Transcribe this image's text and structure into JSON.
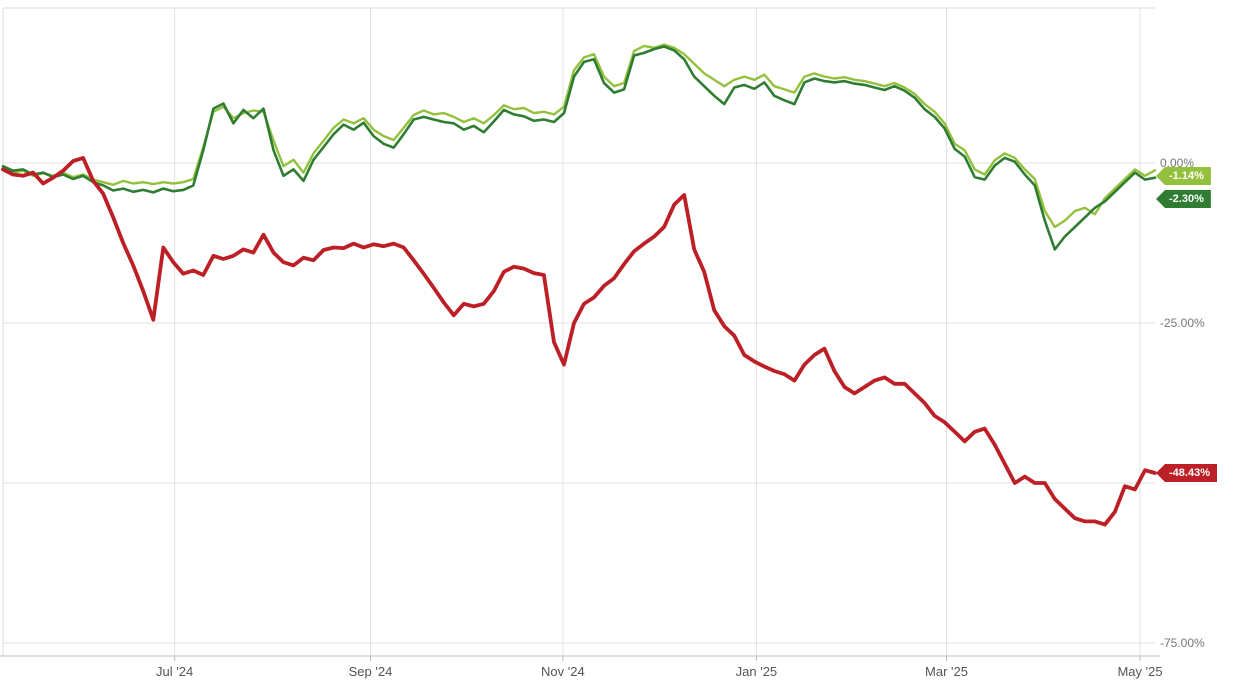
{
  "chart_data": {
    "type": "line",
    "title": "",
    "xlabel": "",
    "ylabel": "",
    "ylim": [
      -77,
      24.2
    ],
    "grid": true,
    "legend_position": "right-badges",
    "x_ticks": [
      {
        "label": "Jul '24",
        "t": 0.149
      },
      {
        "label": "Sep '24",
        "t": 0.319
      },
      {
        "label": "Nov '24",
        "t": 0.486
      },
      {
        "label": "Jan '25",
        "t": 0.654
      },
      {
        "label": "Mar '25",
        "t": 0.819
      },
      {
        "label": "May '25",
        "t": 0.987
      }
    ],
    "y_ticks": [
      {
        "label": "0.00%",
        "value": 0
      },
      {
        "label": "-25.00%",
        "value": -25
      },
      {
        "label": "-75.00%",
        "value": -75
      }
    ],
    "grid_values": [
      0,
      -25,
      -50,
      -75
    ],
    "colors": {
      "grid": "#e2e2e2",
      "border": "#dddddd",
      "axis": "#bbbbbb",
      "tick_text": "#777777",
      "month_text": "#555555"
    },
    "series": [
      {
        "name": "series-light-green",
        "color": "#94c13d",
        "badge": "-1.14%",
        "final_value": -1.14,
        "width": 2.4,
        "values": [
          -0.8,
          -1.5,
          -1.2,
          -2.0,
          -1.6,
          -2.0,
          -1.5,
          -2.2,
          -1.8,
          -2.6,
          -3.0,
          -3.4,
          -2.8,
          -3.2,
          -3.0,
          -3.3,
          -3.0,
          -3.2,
          -3.0,
          -2.5,
          2.5,
          8.0,
          8.8,
          7.0,
          7.8,
          8.2,
          8.0,
          3.5,
          -0.5,
          0.5,
          -1.5,
          1.5,
          3.5,
          5.5,
          6.8,
          6.2,
          7.0,
          5.2,
          4.2,
          3.6,
          5.5,
          7.5,
          8.2,
          7.6,
          7.8,
          7.2,
          6.4,
          7.0,
          6.2,
          7.5,
          9.0,
          8.4,
          8.6,
          7.8,
          8.0,
          7.6,
          8.8,
          14.5,
          16.5,
          17.0,
          13.5,
          12.0,
          12.5,
          17.5,
          18.3,
          18.0,
          18.5,
          18.0,
          17.0,
          15.5,
          14.0,
          13.0,
          12.0,
          13.0,
          13.5,
          13.0,
          13.8,
          12.0,
          11.5,
          11.0,
          13.5,
          14.0,
          13.5,
          13.2,
          13.4,
          13.0,
          12.8,
          12.4,
          12.0,
          12.5,
          11.8,
          10.8,
          9.2,
          8.0,
          6.2,
          3.0,
          2.0,
          -1.0,
          -1.8,
          0.4,
          1.5,
          0.8,
          -1.0,
          -2.5,
          -7.5,
          -10.0,
          -9.0,
          -7.5,
          -7.0,
          -8.0,
          -5.5,
          -4.0,
          -2.5,
          -1.0,
          -2.0,
          -1.14
        ]
      },
      {
        "name": "series-dark-green",
        "color": "#2e7d32",
        "badge": "-2.30%",
        "final_value": -2.3,
        "width": 2.6,
        "values": [
          -0.5,
          -1.2,
          -1.0,
          -1.8,
          -1.5,
          -2.2,
          -1.8,
          -2.5,
          -2.0,
          -3.0,
          -3.5,
          -4.3,
          -4.0,
          -4.5,
          -4.2,
          -4.6,
          -4.0,
          -4.4,
          -4.2,
          -3.5,
          2.0,
          8.5,
          9.3,
          6.2,
          8.3,
          7.0,
          8.5,
          2.0,
          -2.0,
          -1.0,
          -2.8,
          0.5,
          2.5,
          4.5,
          6.0,
          5.2,
          6.3,
          4.2,
          3.0,
          2.4,
          4.5,
          6.8,
          7.2,
          6.8,
          6.4,
          6.2,
          5.2,
          5.8,
          4.8,
          6.5,
          8.3,
          7.6,
          7.3,
          6.6,
          6.8,
          6.4,
          7.8,
          13.5,
          15.8,
          16.2,
          12.5,
          11.0,
          11.5,
          16.8,
          17.2,
          17.8,
          18.2,
          17.6,
          16.2,
          13.5,
          12.0,
          10.5,
          9.2,
          11.8,
          12.2,
          11.6,
          12.6,
          10.5,
          9.8,
          9.2,
          12.6,
          13.2,
          12.8,
          12.6,
          12.8,
          12.4,
          12.2,
          11.8,
          11.4,
          12.0,
          11.3,
          10.2,
          8.4,
          7.2,
          5.4,
          2.2,
          1.0,
          -2.2,
          -2.6,
          -0.4,
          0.8,
          0.2,
          -1.8,
          -3.5,
          -9.0,
          -13.5,
          -11.5,
          -10.0,
          -8.5,
          -7.0,
          -6.0,
          -4.5,
          -3.0,
          -1.5,
          -2.6,
          -2.3
        ]
      },
      {
        "name": "series-red",
        "color": "#bc2026",
        "badge": "-48.43%",
        "final_value": -48.43,
        "width": 3.8,
        "values": [
          -1.0,
          -1.8,
          -2.0,
          -1.5,
          -3.2,
          -2.3,
          -1.2,
          0.3,
          0.8,
          -2.8,
          -4.8,
          -8.5,
          -12.5,
          -16.0,
          -20.0,
          -24.5,
          -13.2,
          -15.5,
          -17.3,
          -16.8,
          -17.5,
          -14.5,
          -15.0,
          -14.5,
          -13.5,
          -14.0,
          -11.2,
          -14.0,
          -15.5,
          -16.0,
          -14.8,
          -15.2,
          -13.6,
          -13.2,
          -13.3,
          -12.6,
          -13.2,
          -12.7,
          -13.0,
          -12.6,
          -13.2,
          -15.2,
          -17.3,
          -19.5,
          -21.8,
          -23.8,
          -22.0,
          -22.4,
          -22.0,
          -20.0,
          -17.0,
          -16.2,
          -16.5,
          -17.2,
          -17.5,
          -28.0,
          -31.5,
          -25.0,
          -22.0,
          -21.0,
          -19.2,
          -18.0,
          -15.8,
          -13.8,
          -12.6,
          -11.5,
          -10.0,
          -6.5,
          -5.0,
          -13.5,
          -17.0,
          -23.0,
          -25.5,
          -27.0,
          -30.0,
          -31.0,
          -31.8,
          -32.5,
          -33.0,
          -34.0,
          -31.5,
          -30.0,
          -29.0,
          -32.5,
          -35.0,
          -36.0,
          -35.0,
          -34.0,
          -33.5,
          -34.5,
          -34.5,
          -36.0,
          -37.5,
          -39.5,
          -40.5,
          -42.0,
          -43.5,
          -42.0,
          -41.5,
          -44.0,
          -47.0,
          -50.0,
          -49.0,
          -50.0,
          -50.0,
          -52.5,
          -54.0,
          -55.5,
          -56.0,
          -56.0,
          -56.5,
          -54.5,
          -50.5,
          -51.0,
          -48.0,
          -48.43
        ]
      }
    ]
  }
}
